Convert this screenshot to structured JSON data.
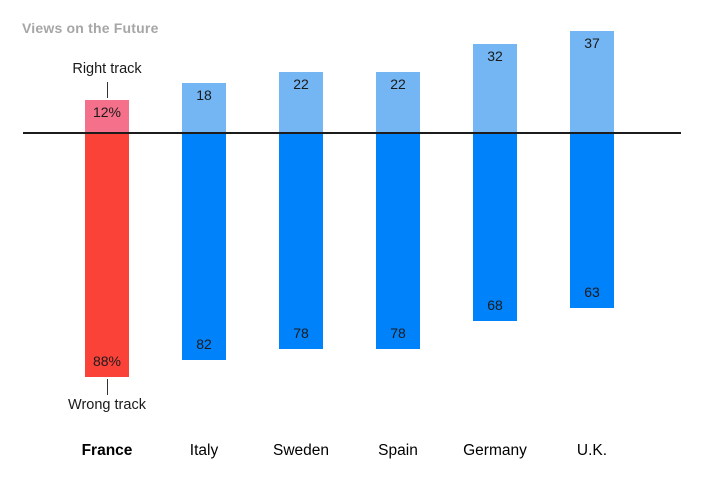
{
  "title": "Views on the Future",
  "annotations": {
    "right_track": "Right track",
    "wrong_track": "Wrong track"
  },
  "colors": {
    "highlight_right": "#f5708a",
    "highlight_wrong": "#fb4239",
    "right_track": "#74b6f4",
    "wrong_track": "#0082fa",
    "baseline": "#1c1c1c",
    "connector": "#333333",
    "title_text": "#a6a6a6",
    "label_text": "#1a1a1a"
  },
  "chart_data": {
    "type": "bar",
    "subtype": "diverging-vertical",
    "title": "Views on the Future",
    "categories": [
      "France",
      "Italy",
      "Sweden",
      "Spain",
      "Germany",
      "U.K."
    ],
    "series": [
      {
        "name": "Right track",
        "values": [
          12,
          18,
          22,
          22,
          32,
          37
        ]
      },
      {
        "name": "Wrong track",
        "values": [
          88,
          82,
          78,
          78,
          68,
          63
        ]
      }
    ],
    "value_labels": {
      "right": [
        "12%",
        "18",
        "22",
        "22",
        "32",
        "37"
      ],
      "wrong": [
        "88%",
        "82",
        "78",
        "78",
        "68",
        "63"
      ]
    },
    "highlight_category": "France",
    "baseline": 0,
    "grid": false,
    "legend": "inline-annotations (Right track / Wrong track callouts on France)"
  }
}
